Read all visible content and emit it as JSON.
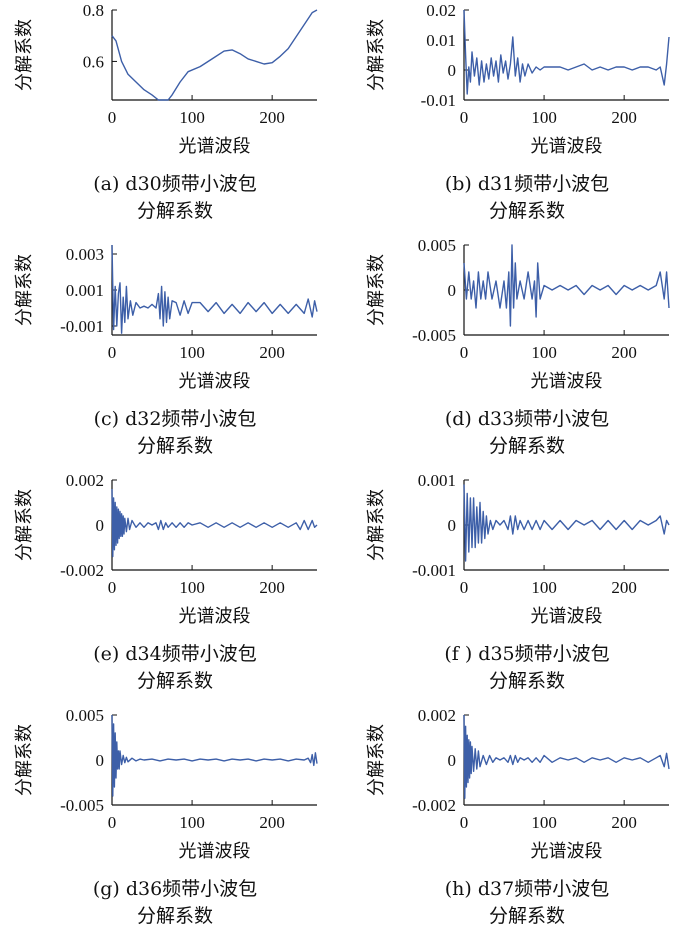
{
  "chart_data": [
    {
      "id": "a",
      "type": "line",
      "ylim": [
        0.45,
        0.8
      ],
      "xlabel": "光谱波段",
      "ylabel": "分解系数",
      "xticks": [
        0,
        100,
        200
      ],
      "yticks": [
        {
          "v": 0.8,
          "t": "0.8"
        },
        {
          "v": 0.6,
          "t": "0.6"
        }
      ],
      "caption": [
        "(a)  d30频带小波包",
        "分解系数"
      ],
      "color": "#3d5fa8",
      "x": [
        0,
        5,
        12,
        20,
        30,
        40,
        50,
        58,
        65,
        70,
        75,
        85,
        95,
        110,
        125,
        140,
        150,
        160,
        170,
        180,
        190,
        200,
        210,
        220,
        235,
        250,
        256
      ],
      "y": [
        0.7,
        0.68,
        0.6,
        0.55,
        0.52,
        0.49,
        0.47,
        0.45,
        0.44,
        0.45,
        0.47,
        0.52,
        0.56,
        0.58,
        0.61,
        0.64,
        0.645,
        0.63,
        0.61,
        0.6,
        0.59,
        0.595,
        0.62,
        0.65,
        0.72,
        0.79,
        0.8
      ]
    },
    {
      "id": "b",
      "type": "line",
      "ylim": [
        -0.01,
        0.02
      ],
      "xlabel": "光谱波段",
      "ylabel": "分解系数",
      "xticks": [
        0,
        100,
        200
      ],
      "yticks": [
        {
          "v": 0.02,
          "t": "0.02"
        },
        {
          "v": 0.01,
          "t": "0.01"
        },
        {
          "v": 0,
          "t": "0"
        },
        {
          "v": -0.01,
          "t": "-0.01"
        }
      ],
      "caption": [
        "(b)  d31频带小波包",
        "分解系数"
      ],
      "color": "#3d5fa8",
      "x": [
        0,
        2,
        4,
        6,
        8,
        10,
        13,
        16,
        19,
        22,
        25,
        28,
        31,
        34,
        37,
        40,
        43,
        46,
        49,
        52,
        55,
        58,
        61,
        64,
        67,
        70,
        73,
        76,
        80,
        85,
        90,
        95,
        100,
        110,
        120,
        130,
        140,
        150,
        160,
        170,
        180,
        190,
        200,
        210,
        220,
        230,
        240,
        245,
        250,
        253,
        256
      ],
      "y": [
        0.02,
        0.005,
        -0.008,
        0.001,
        -0.004,
        0.006,
        -0.002,
        0.004,
        -0.005,
        0.003,
        -0.004,
        0.002,
        -0.003,
        0.004,
        -0.002,
        0.003,
        -0.004,
        0.005,
        -0.001,
        0.003,
        -0.003,
        0.002,
        0.011,
        -0.002,
        0.004,
        -0.004,
        0.002,
        -0.002,
        0.002,
        -0.001,
        0.001,
        0.0,
        0.001,
        0.001,
        0.001,
        0.0,
        0.001,
        0.002,
        0.0,
        0.001,
        0.0,
        0.001,
        0.001,
        0.0,
        0.001,
        0.001,
        0.0,
        0.001,
        -0.005,
        0.002,
        0.011
      ]
    },
    {
      "id": "c",
      "type": "line",
      "ylim": [
        -0.0015,
        0.0035
      ],
      "xlabel": "光谱波段",
      "ylabel": "分解系数",
      "xticks": [
        0,
        100,
        200
      ],
      "yticks": [
        {
          "v": 0.003,
          "t": "0.003"
        },
        {
          "v": 0.001,
          "t": "0.001"
        },
        {
          "v": -0.001,
          "t": "-0.001"
        }
      ],
      "caption": [
        "(c)  d32频带小波包",
        "分解系数"
      ],
      "color": "#3d5fa8",
      "x": [
        0,
        2,
        4,
        6,
        8,
        10,
        12,
        14,
        16,
        18,
        20,
        23,
        26,
        30,
        35,
        40,
        45,
        50,
        55,
        58,
        60,
        62,
        64,
        66,
        68,
        70,
        72,
        75,
        80,
        85,
        90,
        95,
        100,
        110,
        120,
        130,
        140,
        150,
        160,
        170,
        180,
        190,
        200,
        210,
        220,
        230,
        240,
        245,
        250,
        253,
        256
      ],
      "y": [
        0.0035,
        -0.0012,
        0.0012,
        -0.001,
        0.0008,
        0.0014,
        -0.0014,
        0.0006,
        -0.0008,
        0.0012,
        -0.0006,
        0.0004,
        -0.0004,
        0.0003,
        0.0,
        0.0001,
        0.0,
        0.0002,
        0.0,
        0.0008,
        -0.0006,
        0.0012,
        -0.001,
        0.0009,
        -0.0008,
        0.0006,
        -0.0006,
        0.0004,
        0.0003,
        -0.0004,
        0.0004,
        -0.0003,
        0.0003,
        0.0003,
        -0.0002,
        0.0003,
        -0.0003,
        0.0002,
        -0.0003,
        0.0003,
        -0.0002,
        0.0003,
        -0.0003,
        0.0002,
        -0.0003,
        0.0002,
        -0.0003,
        0.0005,
        -0.0005,
        0.0004,
        -0.0002
      ]
    },
    {
      "id": "d",
      "type": "line",
      "ylim": [
        -0.005,
        0.005
      ],
      "xlabel": "光谱波段",
      "ylabel": "分解系数",
      "xticks": [
        0,
        100,
        200
      ],
      "yticks": [
        {
          "v": 0.005,
          "t": "0.005"
        },
        {
          "v": 0,
          "t": "0"
        },
        {
          "v": -0.005,
          "t": "-0.005"
        }
      ],
      "caption": [
        "(d)  d33频带小波包",
        "分解系数"
      ],
      "color": "#3d5fa8",
      "x": [
        0,
        3,
        6,
        9,
        12,
        15,
        18,
        21,
        24,
        27,
        30,
        35,
        40,
        45,
        50,
        53,
        56,
        58,
        60,
        62,
        64,
        66,
        70,
        75,
        80,
        85,
        88,
        90,
        92,
        95,
        100,
        110,
        120,
        130,
        140,
        150,
        160,
        170,
        180,
        190,
        200,
        210,
        220,
        230,
        240,
        245,
        250,
        253,
        256
      ],
      "y": [
        0.003,
        -0.001,
        0.002,
        -0.001,
        0.001,
        -0.002,
        0.002,
        -0.001,
        0.001,
        -0.001,
        0.002,
        -0.001,
        0.001,
        -0.002,
        0.001,
        -0.002,
        0.002,
        -0.004,
        0.005,
        -0.002,
        0.003,
        -0.001,
        0.001,
        -0.001,
        0.002,
        -0.001,
        0.001,
        -0.003,
        0.003,
        -0.001,
        0.0005,
        0.0,
        0.0005,
        0.0,
        0.0005,
        -0.0005,
        0.0005,
        0.0,
        0.0005,
        -0.0005,
        0.0005,
        0.0,
        0.0005,
        0.0,
        0.0005,
        0.002,
        -0.001,
        0.002,
        -0.002
      ]
    },
    {
      "id": "e",
      "type": "line",
      "ylim": [
        -0.002,
        0.002
      ],
      "xlabel": "光谱波段",
      "ylabel": "分解系数",
      "xticks": [
        0,
        100,
        200
      ],
      "yticks": [
        {
          "v": 0.002,
          "t": "0.002"
        },
        {
          "v": 0,
          "t": "0"
        },
        {
          "v": -0.002,
          "t": "-0.002"
        }
      ],
      "caption": [
        "(e)  d34频带小波包",
        "分解系数"
      ],
      "color": "#3d5fa8",
      "x": [
        0,
        1,
        2,
        3,
        4,
        5,
        6,
        7,
        8,
        9,
        10,
        11,
        12,
        13,
        14,
        15,
        16,
        18,
        20,
        22,
        25,
        30,
        35,
        40,
        45,
        50,
        55,
        58,
        61,
        64,
        67,
        70,
        75,
        80,
        85,
        90,
        95,
        100,
        110,
        120,
        130,
        140,
        150,
        160,
        170,
        180,
        190,
        200,
        210,
        220,
        230,
        235,
        240,
        245,
        250,
        253,
        256
      ],
      "y": [
        0.0016,
        -0.0014,
        0.0012,
        -0.0011,
        0.001,
        -0.0009,
        0.0008,
        -0.0008,
        0.0007,
        -0.0006,
        0.0006,
        -0.0005,
        0.0005,
        -0.0005,
        0.0004,
        -0.0004,
        0.0003,
        -0.0003,
        0.0003,
        -0.0002,
        0.0002,
        -0.0001,
        0.0001,
        -0.0001,
        0.0001,
        0.0,
        0.0001,
        -0.0002,
        0.0002,
        -0.0002,
        0.0001,
        -0.0001,
        0.0001,
        -0.0001,
        0.0001,
        -0.0001,
        0.0001,
        0.0,
        0.0001,
        -0.0001,
        0.0001,
        -0.0001,
        0.0001,
        -0.0001,
        0.0001,
        -0.0001,
        0.0001,
        -0.0001,
        0.0001,
        -0.0001,
        0.0001,
        -0.0002,
        0.0002,
        -0.0002,
        0.0002,
        -0.0001,
        0.0
      ]
    },
    {
      "id": "f",
      "type": "line",
      "ylim": [
        -0.001,
        0.001
      ],
      "xlabel": "光谱波段",
      "ylabel": "分解系数",
      "xticks": [
        0,
        100,
        200
      ],
      "yticks": [
        {
          "v": 0.001,
          "t": "0.001"
        },
        {
          "v": 0,
          "t": "0"
        },
        {
          "v": -0.001,
          "t": "-0.001"
        }
      ],
      "caption": [
        "(f )  d35频带小波包",
        "分解系数"
      ],
      "color": "#3d5fa8",
      "x": [
        0,
        2,
        4,
        6,
        8,
        10,
        12,
        14,
        16,
        18,
        20,
        22,
        24,
        26,
        28,
        30,
        33,
        36,
        40,
        45,
        50,
        55,
        58,
        61,
        64,
        67,
        70,
        75,
        80,
        85,
        90,
        95,
        100,
        110,
        120,
        130,
        140,
        150,
        160,
        170,
        180,
        190,
        200,
        210,
        220,
        230,
        240,
        245,
        250,
        253,
        256
      ],
      "y": [
        0.0009,
        -0.0008,
        0.0007,
        -0.0006,
        0.0006,
        -0.0005,
        0.0006,
        -0.0005,
        0.0004,
        -0.0004,
        0.0005,
        -0.0004,
        0.0003,
        -0.0003,
        0.0002,
        -0.0002,
        0.0001,
        -0.0001,
        0.0001,
        0.0,
        0.0001,
        -0.0001,
        0.0002,
        -0.0002,
        0.0002,
        -0.0001,
        0.0001,
        -0.0001,
        0.0001,
        -0.0001,
        0.0001,
        -0.0001,
        0.0001,
        -0.0001,
        0.0001,
        -0.0001,
        0.0001,
        0.0,
        0.0001,
        -0.0001,
        0.0001,
        -0.0001,
        0.0001,
        -0.0001,
        0.0001,
        0.0,
        0.0001,
        0.0002,
        -0.0002,
        0.0001,
        0.0
      ]
    },
    {
      "id": "g",
      "type": "line",
      "ylim": [
        -0.005,
        0.005
      ],
      "xlabel": "光谱波段",
      "ylabel": "分解系数",
      "xticks": [
        0,
        100,
        200
      ],
      "yticks": [
        {
          "v": 0.005,
          "t": "0.005"
        },
        {
          "v": 0,
          "t": "0"
        },
        {
          "v": -0.005,
          "t": "-0.005"
        }
      ],
      "caption": [
        "(g)  d36频带小波包",
        "分解系数"
      ],
      "color": "#3d5fa8",
      "x": [
        0,
        1,
        2,
        3,
        4,
        5,
        6,
        7,
        8,
        9,
        10,
        12,
        14,
        16,
        18,
        20,
        25,
        30,
        35,
        40,
        50,
        60,
        70,
        80,
        90,
        100,
        110,
        120,
        130,
        140,
        150,
        160,
        170,
        180,
        190,
        200,
        210,
        220,
        230,
        240,
        245,
        248,
        250,
        252,
        254,
        256
      ],
      "y": [
        0.005,
        -0.004,
        0.004,
        -0.003,
        0.003,
        -0.002,
        0.002,
        -0.001,
        0.001,
        -0.001,
        0.001,
        -0.0005,
        0.0005,
        -0.0003,
        0.0003,
        -0.0002,
        0.0002,
        -0.0001,
        0.0001,
        0.0,
        0.0001,
        -0.0001,
        0.0001,
        0.0,
        0.0001,
        -0.0001,
        0.0001,
        0.0,
        0.0001,
        -0.0001,
        0.0001,
        0.0,
        0.0001,
        -0.0001,
        0.0001,
        0.0,
        0.0001,
        -0.0001,
        0.0001,
        0.0,
        0.0002,
        -0.0003,
        0.0006,
        -0.0006,
        0.0008,
        -0.0004
      ]
    },
    {
      "id": "h",
      "type": "line",
      "ylim": [
        -0.002,
        0.002
      ],
      "xlabel": "光谱波段",
      "ylabel": "分解系数",
      "xticks": [
        0,
        100,
        200
      ],
      "yticks": [
        {
          "v": 0.002,
          "t": "0.002"
        },
        {
          "v": 0,
          "t": "0"
        },
        {
          "v": -0.002,
          "t": "-0.002"
        }
      ],
      "caption": [
        "(h)  d37频带小波包",
        "分解系数"
      ],
      "color": "#3d5fa8",
      "x": [
        0,
        1,
        2,
        3,
        4,
        5,
        6,
        7,
        8,
        9,
        10,
        12,
        14,
        16,
        18,
        20,
        24,
        28,
        32,
        36,
        40,
        45,
        50,
        55,
        58,
        61,
        64,
        67,
        70,
        75,
        80,
        85,
        90,
        95,
        100,
        110,
        120,
        130,
        140,
        150,
        160,
        170,
        180,
        190,
        200,
        210,
        220,
        230,
        240,
        245,
        250,
        253,
        256
      ],
      "y": [
        0.002,
        -0.0017,
        0.0015,
        -0.0012,
        0.0011,
        -0.001,
        0.0009,
        -0.0008,
        0.0008,
        -0.0006,
        0.0006,
        -0.0005,
        0.0005,
        -0.0004,
        0.0004,
        -0.0003,
        0.0002,
        -0.0002,
        0.0002,
        -0.0001,
        0.0001,
        0.0,
        0.0001,
        -0.0001,
        0.0002,
        -0.0002,
        0.0002,
        -0.0001,
        0.0001,
        0.0,
        0.0001,
        -0.0001,
        0.0001,
        -0.0001,
        0.0002,
        -0.0001,
        0.0001,
        0.0,
        0.0001,
        -0.0001,
        0.0001,
        0.0,
        0.0001,
        -0.0001,
        0.0001,
        0.0,
        0.0001,
        -0.0001,
        0.0001,
        0.0002,
        -0.0003,
        0.0003,
        -0.0004
      ]
    }
  ]
}
